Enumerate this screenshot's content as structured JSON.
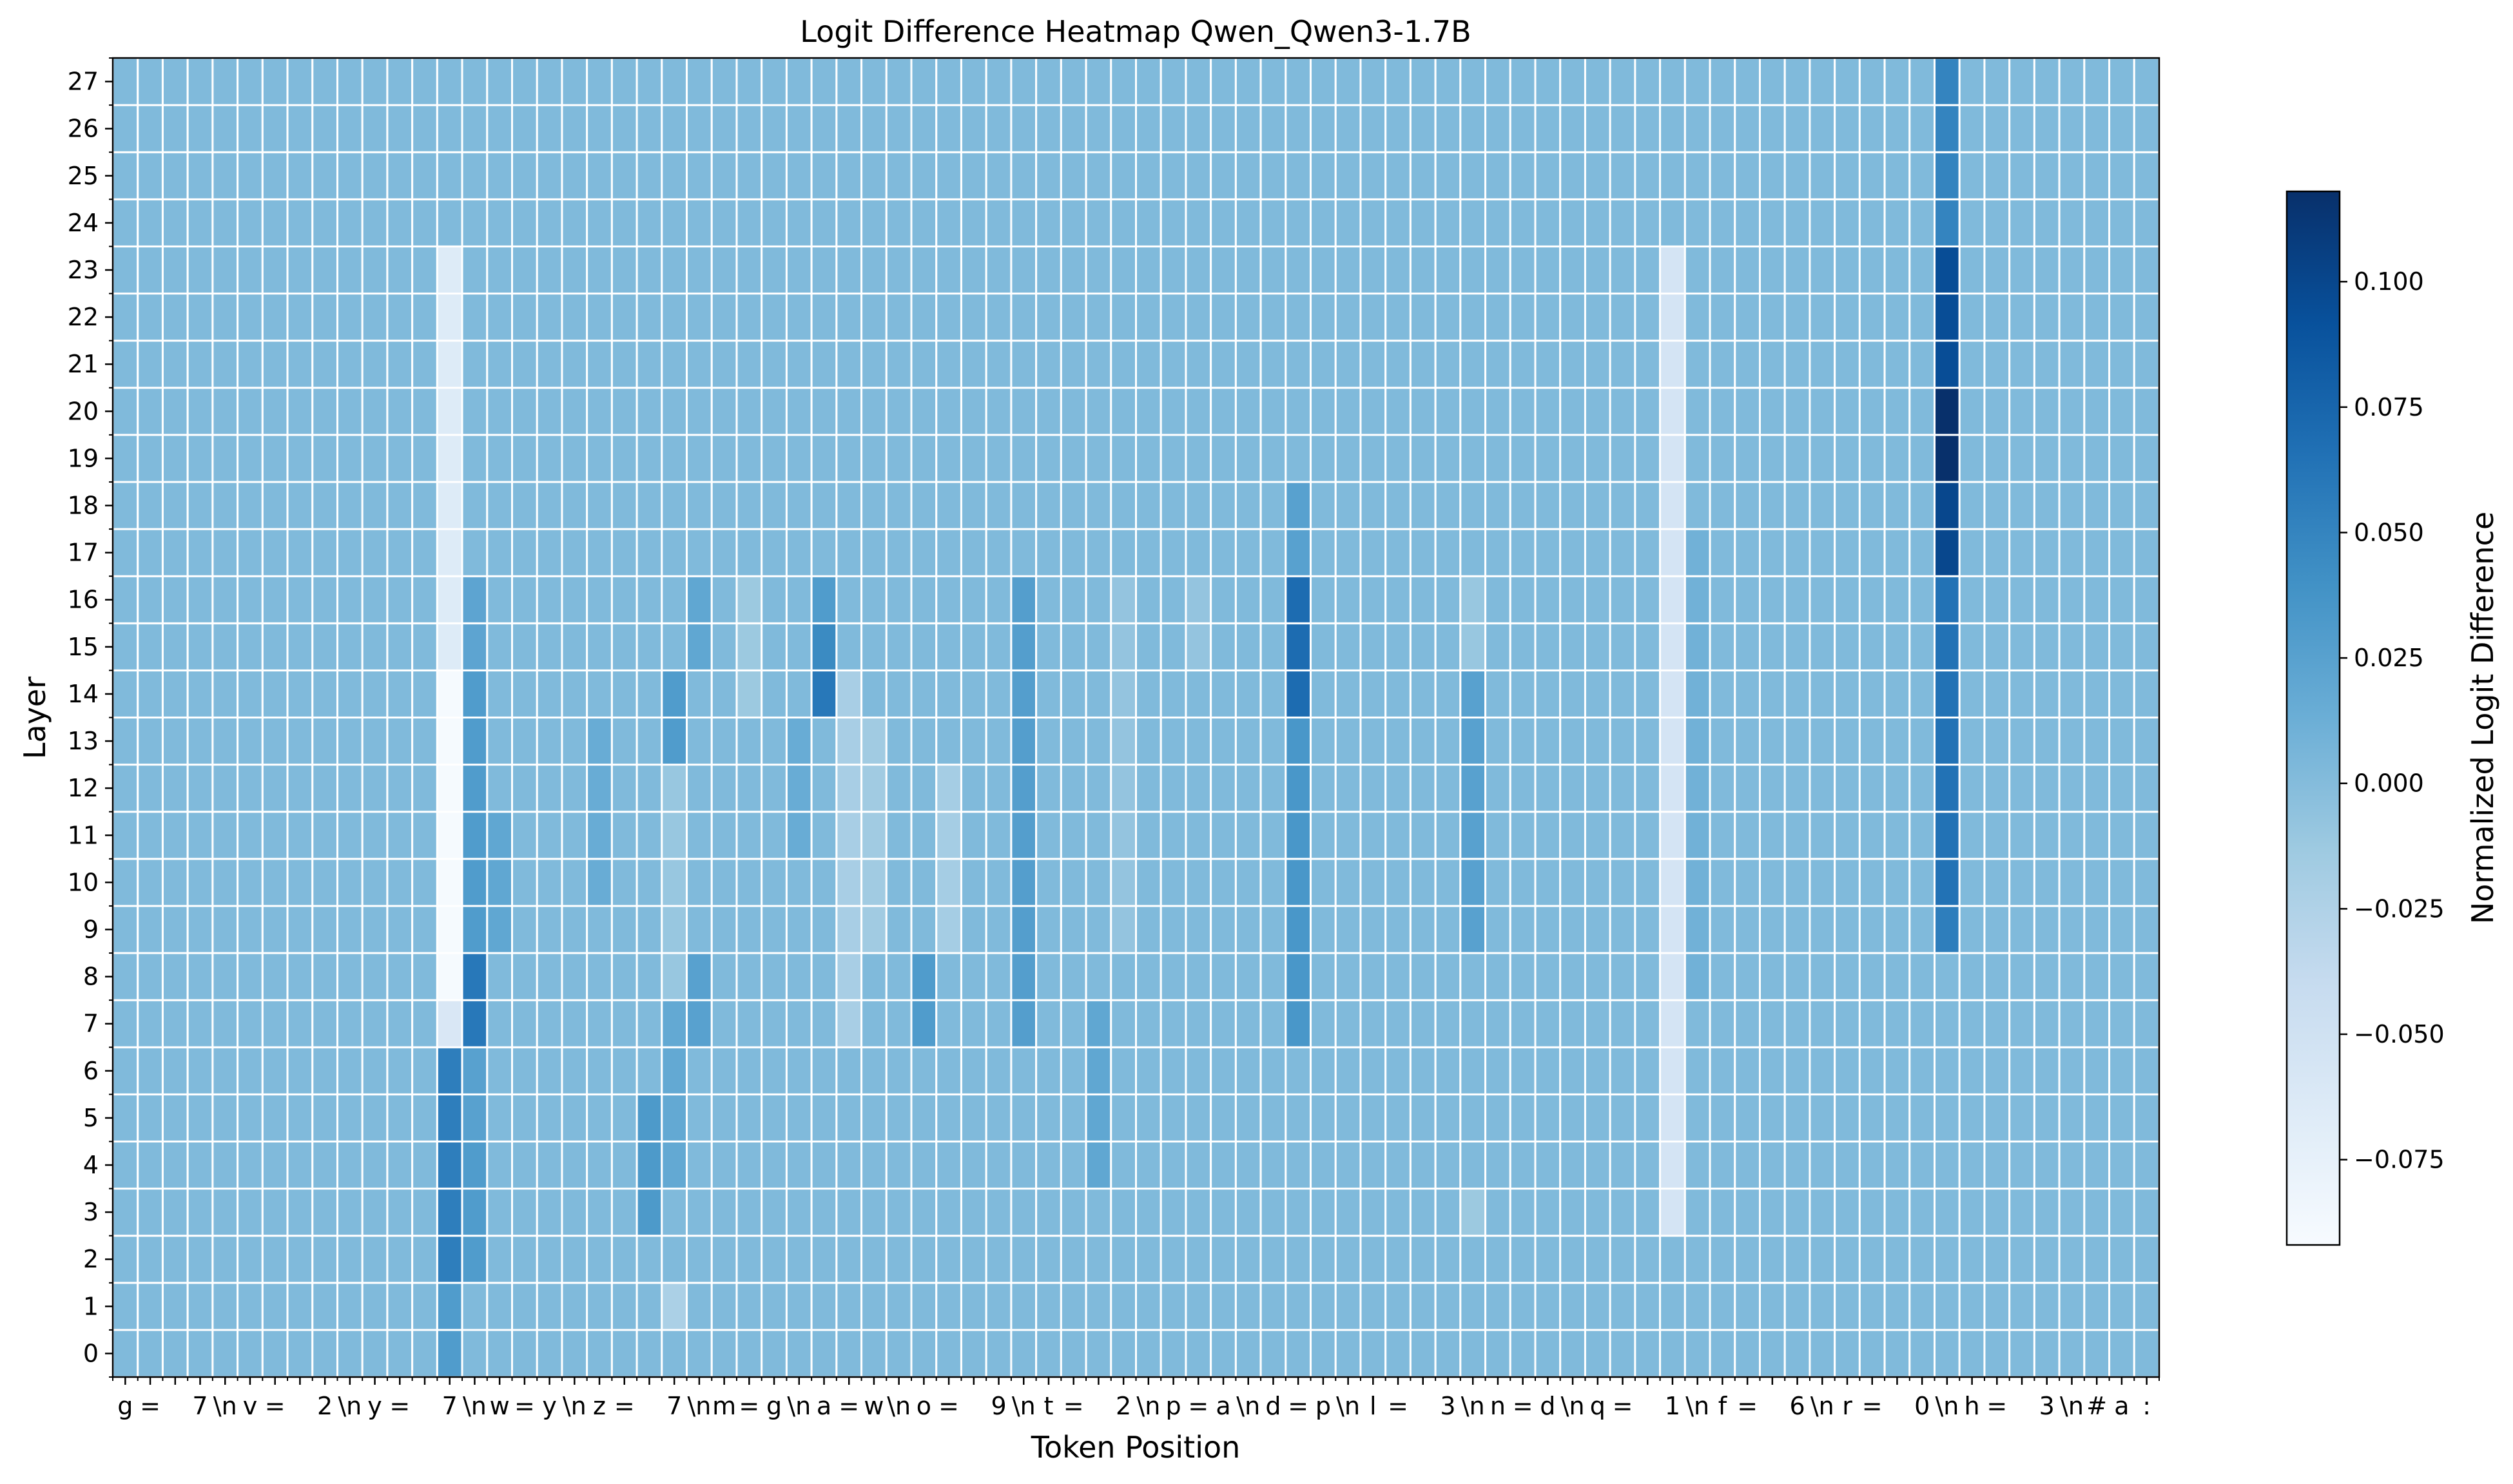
{
  "chart_data": {
    "type": "heatmap",
    "title": "Logit Difference Heatmap Qwen_Qwen3-1.7B",
    "xlabel": "Token Position",
    "ylabel": "Layer",
    "colorbar_label": "Normalized Logit Difference",
    "colormap": "Blues",
    "color_range": [
      -0.092,
      0.118
    ],
    "colorbar_ticks": [
      "−0.075",
      "−0.050",
      "−0.025",
      "0.000",
      "0.025",
      "0.050",
      "0.075",
      "0.100"
    ],
    "colorbar_tick_values": [
      -0.075,
      -0.05,
      -0.025,
      0.0,
      0.025,
      0.05,
      0.075,
      0.1
    ],
    "layers": [
      "0",
      "1",
      "2",
      "3",
      "4",
      "5",
      "6",
      "7",
      "8",
      "9",
      "10",
      "11",
      "12",
      "13",
      "14",
      "15",
      "16",
      "17",
      "18",
      "19",
      "20",
      "21",
      "22",
      "23",
      "24",
      "25",
      "26",
      "27"
    ],
    "tokens": [
      "g",
      " =",
      " ",
      "7",
      "\\n",
      "v",
      " =",
      " ",
      "2",
      "\\n",
      "y",
      " =",
      " ",
      "7",
      "\\n",
      "w",
      " =",
      "y",
      "\\n",
      "z",
      " =",
      " ",
      "7",
      "\\n",
      "m",
      " =",
      "g",
      "\\n",
      "a",
      " =",
      "w",
      "\\n",
      "o",
      " =",
      " ",
      "9",
      "\\n",
      "t",
      " =",
      " ",
      "2",
      "\\n",
      "p",
      " =",
      "a",
      "\\n",
      "d",
      " =",
      "p",
      "\\n",
      "l",
      " =",
      " ",
      "3",
      "\\n",
      "n",
      " =",
      "d",
      "\\n",
      "q",
      " =",
      " ",
      "1",
      "\\n",
      "f",
      " =",
      " ",
      "6",
      "\\n",
      "r",
      " =",
      " ",
      "0",
      "\\n",
      "h",
      " =",
      " ",
      "3",
      "\\n",
      "#",
      "a",
      ":"
    ],
    "x_tick_labels": [
      "g",
      " =",
      " ",
      "7",
      "\\n",
      "v",
      " =",
      " ",
      "2",
      "\\n",
      "y",
      " =",
      " ",
      "7",
      "\\n",
      "w",
      " =",
      "y",
      "\\n",
      "z",
      " =",
      " ",
      "7",
      "\\n",
      "m",
      " =",
      "g",
      "\\n",
      "a",
      " =",
      "w",
      "\\n",
      "o",
      " =",
      " ",
      "9",
      "\\n",
      "t",
      " =",
      " ",
      "2",
      "\\n",
      "p",
      " =",
      "a",
      "\\n",
      "d",
      " =",
      "p",
      "\\n",
      "l",
      " =",
      " ",
      "3",
      "\\n",
      "n",
      " =",
      "d",
      "\\n",
      "q",
      " =",
      " ",
      "1",
      "\\n",
      "f",
      " =",
      " ",
      "6",
      "\\n",
      "r",
      " =",
      " ",
      "0",
      "\\n",
      "h",
      " =",
      " ",
      "3",
      "\\n",
      "#",
      "a",
      ":"
    ],
    "baseline_value": 0.002,
    "column_patterns": [
      {
        "col": 13,
        "layers": [
          0,
          1
        ],
        "value": 0.03
      },
      {
        "col": 13,
        "layers": [
          2,
          6
        ],
        "value": 0.055
      },
      {
        "col": 13,
        "layers": [
          7,
          7
        ],
        "value": -0.06
      },
      {
        "col": 13,
        "layers": [
          8,
          14
        ],
        "value": -0.09
      },
      {
        "col": 13,
        "layers": [
          15,
          23
        ],
        "value": -0.065
      },
      {
        "col": 14,
        "layers": [
          2,
          4
        ],
        "value": 0.03
      },
      {
        "col": 14,
        "layers": [
          5,
          6
        ],
        "value": 0.025
      },
      {
        "col": 14,
        "layers": [
          7,
          8
        ],
        "value": 0.06
      },
      {
        "col": 14,
        "layers": [
          9,
          14
        ],
        "value": 0.03
      },
      {
        "col": 14,
        "layers": [
          15,
          16
        ],
        "value": 0.022
      },
      {
        "col": 15,
        "layers": [
          9,
          11
        ],
        "value": 0.02
      },
      {
        "col": 19,
        "layers": [
          10,
          13
        ],
        "value": 0.015
      },
      {
        "col": 21,
        "layers": [
          3,
          5
        ],
        "value": 0.032
      },
      {
        "col": 22,
        "layers": [
          4,
          7
        ],
        "value": 0.018
      },
      {
        "col": 22,
        "layers": [
          8,
          12
        ],
        "value": -0.01
      },
      {
        "col": 22,
        "layers": [
          13,
          14
        ],
        "value": 0.03
      },
      {
        "col": 22,
        "layers": [
          1,
          1
        ],
        "value": -0.022
      },
      {
        "col": 23,
        "layers": [
          7,
          8
        ],
        "value": 0.025
      },
      {
        "col": 23,
        "layers": [
          15,
          16
        ],
        "value": 0.02
      },
      {
        "col": 25,
        "layers": [
          14,
          16
        ],
        "value": -0.012
      },
      {
        "col": 27,
        "layers": [
          11,
          13
        ],
        "value": 0.015
      },
      {
        "col": 28,
        "layers": [
          14,
          14
        ],
        "value": 0.06
      },
      {
        "col": 28,
        "layers": [
          15,
          15
        ],
        "value": 0.045
      },
      {
        "col": 28,
        "layers": [
          16,
          16
        ],
        "value": 0.03
      },
      {
        "col": 29,
        "layers": [
          7,
          14
        ],
        "value": -0.02
      },
      {
        "col": 30,
        "layers": [
          9,
          13
        ],
        "value": -0.015
      },
      {
        "col": 32,
        "layers": [
          7,
          8
        ],
        "value": 0.03
      },
      {
        "col": 33,
        "layers": [
          9,
          12
        ],
        "value": -0.018
      },
      {
        "col": 36,
        "layers": [
          7,
          16
        ],
        "value": 0.028
      },
      {
        "col": 39,
        "layers": [
          4,
          7
        ],
        "value": 0.02
      },
      {
        "col": 40,
        "layers": [
          9,
          16
        ],
        "value": -0.008
      },
      {
        "col": 43,
        "layers": [
          15,
          16
        ],
        "value": -0.008
      },
      {
        "col": 47,
        "layers": [
          7,
          13
        ],
        "value": 0.035
      },
      {
        "col": 47,
        "layers": [
          14,
          16
        ],
        "value": 0.07
      },
      {
        "col": 47,
        "layers": [
          17,
          18
        ],
        "value": 0.025
      },
      {
        "col": 54,
        "layers": [
          9,
          14
        ],
        "value": 0.025
      },
      {
        "col": 54,
        "layers": [
          15,
          16
        ],
        "value": -0.01
      },
      {
        "col": 54,
        "layers": [
          3,
          3
        ],
        "value": -0.012
      },
      {
        "col": 62,
        "layers": [
          3,
          23
        ],
        "value": -0.055
      },
      {
        "col": 63,
        "layers": [
          8,
          17
        ],
        "value": 0.01
      },
      {
        "col": 73,
        "layers": [
          9,
          9
        ],
        "value": 0.055
      },
      {
        "col": 73,
        "layers": [
          10,
          16
        ],
        "value": 0.065
      },
      {
        "col": 73,
        "layers": [
          17,
          18
        ],
        "value": 0.1
      },
      {
        "col": 73,
        "layers": [
          19,
          20
        ],
        "value": 0.118
      },
      {
        "col": 73,
        "layers": [
          21,
          23
        ],
        "value": 0.095
      },
      {
        "col": 73,
        "layers": [
          24,
          27
        ],
        "value": 0.05
      }
    ]
  }
}
